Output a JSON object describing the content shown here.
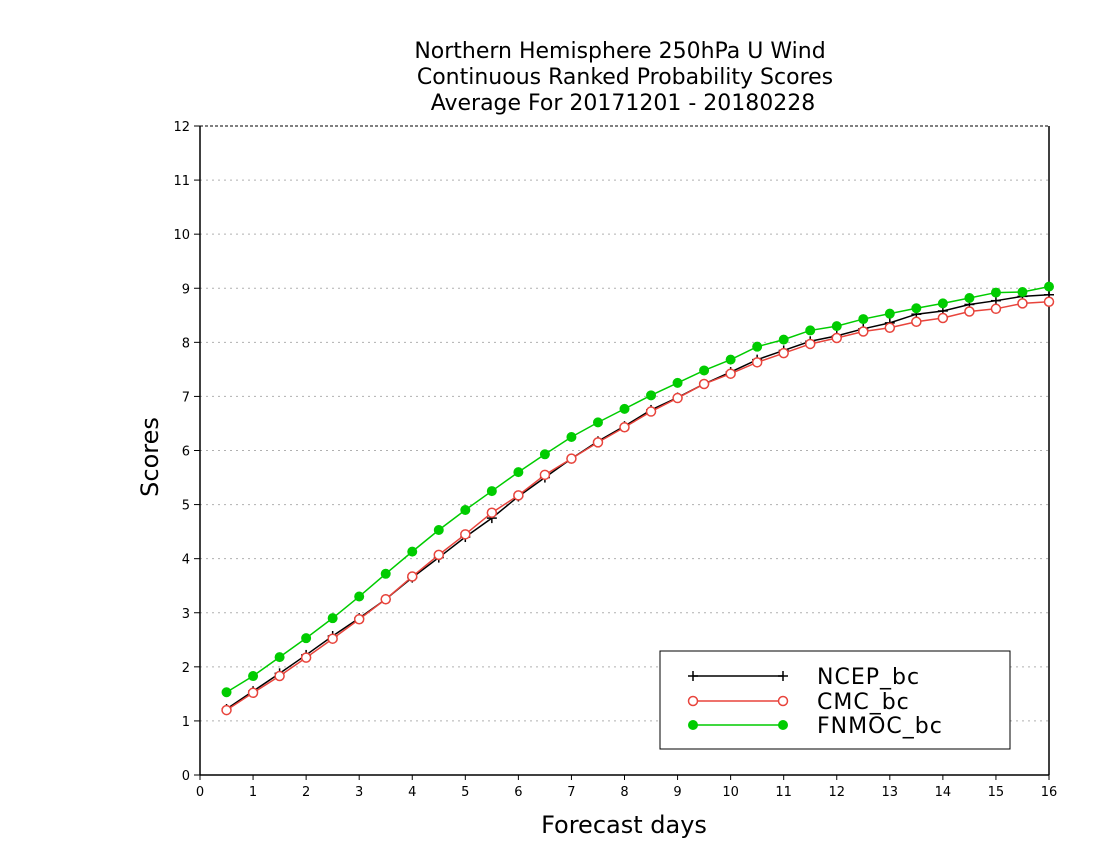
{
  "chart_data": {
    "type": "line",
    "title": [
      "Northern Hemisphere 250hPa U Wind",
      "Continuous Ranked Probability Scores",
      "Average For 20171201 - 20180228"
    ],
    "xlabel": "Forecast days",
    "ylabel": "Scores",
    "xlim": [
      0,
      16
    ],
    "ylim": [
      0,
      12
    ],
    "xticks": [
      "0",
      "1",
      "2",
      "3",
      "4",
      "5",
      "6",
      "7",
      "8",
      "9",
      "10",
      "11",
      "12",
      "13",
      "14",
      "15",
      "16"
    ],
    "yticks": [
      "0",
      "1",
      "2",
      "3",
      "4",
      "5",
      "6",
      "7",
      "8",
      "9",
      "10",
      "11",
      "12"
    ],
    "grid": true,
    "legend_position": "bottom-right",
    "x": [
      0.5,
      1,
      1.5,
      2,
      2.5,
      3,
      3.5,
      4,
      4.5,
      5,
      5.5,
      6,
      6.5,
      7,
      7.5,
      8,
      8.5,
      9,
      9.5,
      10,
      10.5,
      11,
      11.5,
      12,
      12.5,
      13,
      13.5,
      14,
      14.5,
      15,
      15.5,
      16
    ],
    "series": [
      {
        "name": "NCEP_bc",
        "color": "#000000",
        "marker": "plus",
        "values": [
          1.22,
          1.55,
          1.88,
          2.22,
          2.57,
          2.9,
          3.25,
          3.65,
          4.02,
          4.4,
          4.75,
          5.15,
          5.5,
          5.85,
          6.17,
          6.45,
          6.75,
          6.98,
          7.23,
          7.45,
          7.68,
          7.85,
          8.02,
          8.12,
          8.25,
          8.36,
          8.52,
          8.58,
          8.7,
          8.77,
          8.85,
          8.88
        ]
      },
      {
        "name": "CMC_bc",
        "color": "#e8443c",
        "marker": "open-circle",
        "values": [
          1.2,
          1.52,
          1.83,
          2.17,
          2.52,
          2.88,
          3.25,
          3.67,
          4.07,
          4.45,
          4.85,
          5.17,
          5.55,
          5.85,
          6.15,
          6.43,
          6.72,
          6.97,
          7.23,
          7.42,
          7.63,
          7.8,
          7.97,
          8.08,
          8.2,
          8.27,
          8.38,
          8.45,
          8.57,
          8.62,
          8.72,
          8.75
        ]
      },
      {
        "name": "FNMOC_bc",
        "color": "#00cc00",
        "marker": "filled-circle",
        "values": [
          1.53,
          1.83,
          2.18,
          2.53,
          2.9,
          3.3,
          3.72,
          4.13,
          4.53,
          4.9,
          5.25,
          5.6,
          5.93,
          6.25,
          6.52,
          6.77,
          7.02,
          7.25,
          7.48,
          7.68,
          7.92,
          8.05,
          8.22,
          8.3,
          8.43,
          8.53,
          8.63,
          8.72,
          8.82,
          8.92,
          8.93,
          9.03
        ]
      }
    ]
  }
}
